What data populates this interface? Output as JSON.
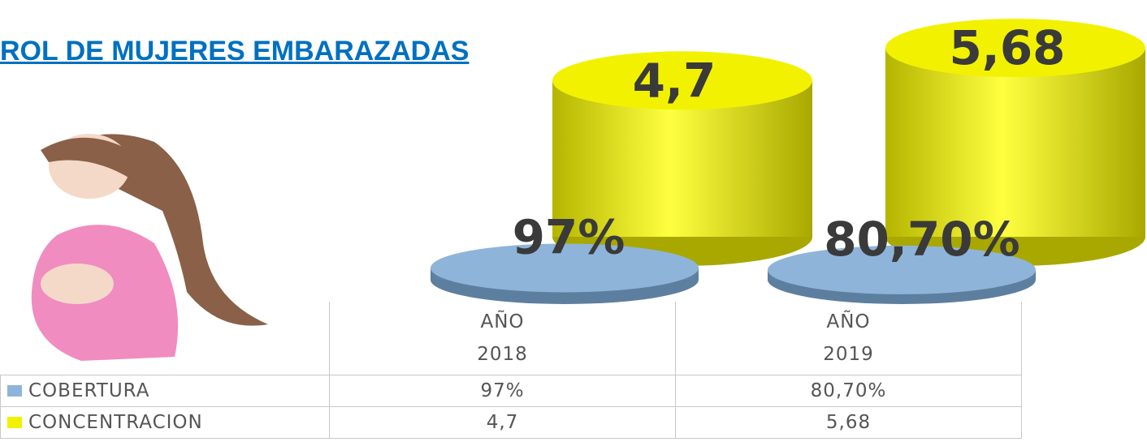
{
  "chart_data": {
    "type": "cylinder3d",
    "title": "ROL DE MUJERES EMBARAZADAS",
    "categories": [
      "AÑO\n2018",
      "AÑO\n2019"
    ],
    "series": [
      {
        "name": "COBERTURA",
        "color": "#8fb4d9",
        "values": [
          97,
          80.7
        ],
        "value_labels": [
          "97%",
          "80,70%"
        ]
      },
      {
        "name": "CONCENTRACION",
        "color": "#f2f200",
        "values": [
          4.7,
          5.68
        ],
        "value_labels": [
          "4,7",
          "5,68"
        ]
      }
    ]
  }
}
